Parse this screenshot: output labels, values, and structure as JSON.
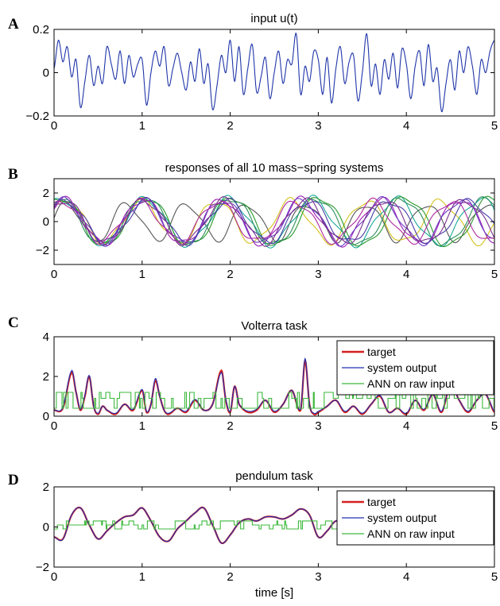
{
  "figure": {
    "xlabel": "time [s]"
  },
  "chart_data": [
    {
      "type": "line",
      "panel_letter": "A",
      "title": "input u(t)",
      "xlim": [
        0,
        5
      ],
      "ylim": [
        -0.2,
        0.2
      ],
      "xticks": [
        0,
        1,
        2,
        3,
        4,
        5
      ],
      "yticks": [
        -0.2,
        0,
        0.2
      ],
      "ytick_labels": [
        "−0.2",
        "0",
        "0.2"
      ],
      "grid": false,
      "series": [
        {
          "color": "#1f35a8",
          "x": [
            0,
            0.05,
            0.1,
            0.15,
            0.2,
            0.25,
            0.3,
            0.35,
            0.4,
            0.45,
            0.5,
            0.55,
            0.6,
            0.65,
            0.7,
            0.75,
            0.8,
            0.85,
            0.9,
            0.95,
            1,
            1.05,
            1.1,
            1.15,
            1.2,
            1.25,
            1.3,
            1.35,
            1.4,
            1.45,
            1.5,
            1.55,
            1.6,
            1.65,
            1.7,
            1.75,
            1.8,
            1.85,
            1.9,
            1.95,
            2,
            2.05,
            2.1,
            2.15,
            2.2,
            2.25,
            2.3,
            2.35,
            2.4,
            2.45,
            2.5,
            2.55,
            2.6,
            2.65,
            2.7,
            2.75,
            2.8,
            2.85,
            2.9,
            2.95,
            3,
            3.05,
            3.1,
            3.15,
            3.2,
            3.25,
            3.3,
            3.35,
            3.4,
            3.45,
            3.5,
            3.55,
            3.6,
            3.65,
            3.7,
            3.75,
            3.8,
            3.85,
            3.9,
            3.95,
            4,
            4.05,
            4.1,
            4.15,
            4.2,
            4.25,
            4.3,
            4.35,
            4.4,
            4.45,
            4.5,
            4.55,
            4.6,
            4.65,
            4.7,
            4.75,
            4.8,
            4.85,
            4.9,
            4.95,
            5
          ],
          "y": [
            0.02,
            0.15,
            0.05,
            0.12,
            -0.02,
            0.06,
            -0.16,
            -0.04,
            0.08,
            -0.06,
            0.03,
            -0.05,
            0.12,
            0.04,
            -0.03,
            0.1,
            -0.05,
            0.08,
            -0.02,
            0.04,
            0.06,
            -0.15,
            0.0,
            0.1,
            0.03,
            0.12,
            -0.06,
            0.02,
            0.09,
            0.0,
            -0.08,
            0.05,
            -0.04,
            0.11,
            -0.05,
            0.04,
            -0.17,
            -0.06,
            0.08,
            0.0,
            0.15,
            -0.04,
            0.12,
            -0.1,
            0.02,
            0.13,
            -0.09,
            -0.02,
            0.07,
            -0.12,
            0.0,
            0.1,
            -0.05,
            0.06,
            0.04,
            0.18,
            -0.1,
            0.03,
            -0.04,
            0.1,
            0.06,
            -0.1,
            0.07,
            -0.14,
            0.02,
            0.12,
            -0.05,
            0.05,
            0.08,
            -0.13,
            0.0,
            0.18,
            -0.06,
            0.04,
            -0.1,
            0.06,
            -0.03,
            0.09,
            -0.07,
            0.11,
            0.04,
            -0.12,
            0.03,
            0.1,
            -0.06,
            0.13,
            -0.04,
            0.02,
            -0.18,
            -0.05,
            0.06,
            -0.08,
            0.1,
            0.0,
            0.12,
            0.03,
            -0.1,
            0.06,
            0.0,
            0.1,
            0.15
          ]
        }
      ]
    },
    {
      "type": "line",
      "panel_letter": "B",
      "title": "responses of all 10 mass−spring systems",
      "xlim": [
        0,
        5
      ],
      "ylim": [
        -3,
        3
      ],
      "xticks": [
        0,
        1,
        2,
        3,
        4,
        5
      ],
      "yticks": [
        -2,
        0,
        2
      ],
      "ytick_labels": [
        "−2",
        "0",
        "2"
      ],
      "grid": false,
      "series": [
        {
          "color": "#555555",
          "amp": 1.25,
          "period": 0.68,
          "phase": 0.2,
          "x": [
            0,
            5
          ]
        },
        {
          "color": "#d4c21a",
          "amp": 1.45,
          "period": 0.85,
          "phase": 0.5,
          "x": [
            0,
            5
          ]
        },
        {
          "color": "#1aa89a",
          "amp": 1.6,
          "period": 0.95,
          "phase": 1.0,
          "x": [
            0,
            5
          ]
        },
        {
          "color": "#2a9a2a",
          "amp": 1.7,
          "period": 0.98,
          "phase": 1.1,
          "x": [
            0,
            5
          ]
        },
        {
          "color": "#2c8f5a",
          "amp": 1.65,
          "period": 0.97,
          "phase": 1.15,
          "x": [
            0,
            5
          ]
        },
        {
          "color": "#9b1fb5",
          "amp": 1.55,
          "period": 0.9,
          "phase": 0.8,
          "x": [
            0,
            5
          ]
        },
        {
          "color": "#6d3cc4",
          "amp": 1.5,
          "period": 0.9,
          "phase": 0.75,
          "x": [
            0,
            5
          ]
        },
        {
          "color": "#4a3ea8",
          "amp": 1.45,
          "period": 0.92,
          "phase": 0.7,
          "x": [
            0,
            5
          ]
        },
        {
          "color": "#b02aa0",
          "amp": 1.4,
          "period": 0.88,
          "phase": 0.85,
          "x": [
            0,
            5
          ]
        },
        {
          "color": "#7a2f8f",
          "amp": 1.5,
          "period": 0.91,
          "phase": 0.78,
          "x": [
            0,
            5
          ]
        }
      ]
    },
    {
      "type": "line",
      "panel_letter": "C",
      "title": "Volterra task",
      "xlim": [
        0,
        5
      ],
      "ylim": [
        0,
        4
      ],
      "xticks": [
        0,
        1,
        2,
        3,
        4,
        5
      ],
      "yticks": [
        0,
        2,
        4
      ],
      "ytick_labels": [
        "0",
        "2",
        "4"
      ],
      "grid": false,
      "legend": {
        "position": "top-right"
      },
      "series": [
        {
          "name": "target",
          "color": "#d42020",
          "x": [
            0,
            0.1,
            0.2,
            0.25,
            0.3,
            0.35,
            0.4,
            0.45,
            0.5,
            0.55,
            0.6,
            0.7,
            0.8,
            0.9,
            1.0,
            1.05,
            1.1,
            1.15,
            1.2,
            1.25,
            1.3,
            1.4,
            1.5,
            1.6,
            1.7,
            1.8,
            1.9,
            1.95,
            2.0,
            2.05,
            2.1,
            2.2,
            2.3,
            2.4,
            2.5,
            2.6,
            2.7,
            2.8,
            2.85,
            2.9,
            2.95,
            3.0,
            3.1,
            3.2,
            3.3,
            3.4,
            3.5,
            3.6,
            3.7,
            3.8,
            3.9,
            4.0,
            4.1,
            4.2,
            4.3,
            4.4,
            4.5,
            4.6,
            4.7,
            4.8,
            4.9,
            5.0
          ],
          "y": [
            0.3,
            0.4,
            2.2,
            1.2,
            0.3,
            1.0,
            2.0,
            0.5,
            0.1,
            0.5,
            0.3,
            0.1,
            0.6,
            0.3,
            1.3,
            0.2,
            0.6,
            1.8,
            1.0,
            0.3,
            0.1,
            0.4,
            0.2,
            0.8,
            0.3,
            0.6,
            2.3,
            0.8,
            0.2,
            1.5,
            0.6,
            0.2,
            0.3,
            0.8,
            0.2,
            0.6,
            1.3,
            0.3,
            2.8,
            0.6,
            0.1,
            0.2,
            0.5,
            0.8,
            0.2,
            0.5,
            0.1,
            0.6,
            1.0,
            0.2,
            0.4,
            0.1,
            0.8,
            0.3,
            1.1,
            0.2,
            1.6,
            0.8,
            0.2,
            0.8,
            1.1,
            0.2
          ]
        },
        {
          "name": "system output",
          "color": "#2030b0",
          "x": [
            0,
            0.1,
            0.2,
            0.25,
            0.3,
            0.35,
            0.4,
            0.45,
            0.5,
            0.55,
            0.6,
            0.7,
            0.8,
            0.9,
            1.0,
            1.05,
            1.1,
            1.15,
            1.2,
            1.25,
            1.3,
            1.4,
            1.5,
            1.6,
            1.7,
            1.8,
            1.9,
            1.95,
            2.0,
            2.05,
            2.1,
            2.2,
            2.3,
            2.4,
            2.5,
            2.6,
            2.7,
            2.8,
            2.85,
            2.9,
            2.95,
            3.0,
            3.1,
            3.2,
            3.3,
            3.4,
            3.5,
            3.6,
            3.7,
            3.8,
            3.9,
            4.0,
            4.1,
            4.2,
            4.3,
            4.4,
            4.5,
            4.6,
            4.7,
            4.8,
            4.9,
            5.0
          ],
          "y": [
            0.3,
            0.45,
            2.3,
            1.2,
            0.35,
            1.05,
            2.05,
            0.5,
            0.15,
            0.5,
            0.3,
            0.15,
            0.6,
            0.35,
            1.35,
            0.25,
            0.6,
            1.9,
            1.0,
            0.3,
            0.15,
            0.4,
            0.25,
            0.85,
            0.3,
            0.6,
            2.2,
            0.85,
            0.25,
            1.5,
            0.6,
            0.25,
            0.35,
            0.8,
            0.25,
            0.6,
            1.3,
            0.35,
            2.9,
            0.6,
            0.15,
            0.25,
            0.5,
            0.8,
            0.25,
            0.5,
            0.15,
            0.6,
            1.05,
            0.2,
            0.4,
            0.15,
            0.8,
            0.35,
            1.1,
            0.25,
            1.6,
            0.8,
            0.25,
            0.8,
            1.1,
            0.25
          ]
        },
        {
          "name": "ANN on raw input",
          "color": "#3cb83c",
          "levels": [
            0.4,
            0.9,
            1.2
          ],
          "x": [
            0,
            5
          ]
        }
      ]
    },
    {
      "type": "line",
      "panel_letter": "D",
      "title": "pendulum task",
      "xlim": [
        0,
        5
      ],
      "ylim": [
        -2,
        2
      ],
      "xticks": [
        0,
        1,
        2,
        3,
        4,
        5
      ],
      "yticks": [
        -2,
        0,
        2
      ],
      "ytick_labels": [
        "−2",
        "0",
        "2"
      ],
      "xlabel": "time [s]",
      "grid": false,
      "legend": {
        "position": "top-right"
      },
      "series": [
        {
          "name": "target",
          "color": "#d42020",
          "x": [
            0,
            0.1,
            0.2,
            0.3,
            0.4,
            0.5,
            0.6,
            0.7,
            0.8,
            0.9,
            1.0,
            1.1,
            1.2,
            1.3,
            1.4,
            1.5,
            1.6,
            1.7,
            1.8,
            1.9,
            2.0,
            2.1,
            2.2,
            2.3,
            2.4,
            2.5,
            2.6,
            2.7,
            2.8,
            2.9,
            3.0,
            3.1,
            3.2,
            3.3,
            3.4,
            3.5,
            3.6,
            3.7,
            3.8,
            3.9,
            4.0,
            4.1,
            4.2,
            4.3,
            4.4,
            4.5,
            4.6,
            4.7,
            4.8,
            4.9,
            5.0
          ],
          "y": [
            -0.5,
            -0.6,
            0.6,
            0.95,
            0.1,
            -0.6,
            -0.2,
            0.2,
            0.5,
            0.6,
            0.95,
            0.3,
            -0.5,
            -0.7,
            -0.1,
            0.3,
            0.7,
            0.95,
            0.1,
            -0.8,
            -0.4,
            0.2,
            0.4,
            0.3,
            0.5,
            0.5,
            0.4,
            0.6,
            0.9,
            0.6,
            -0.5,
            -0.2,
            0.3,
            0.1,
            0.0,
            -0.2,
            0.3,
            0.5,
            0.6,
            0.6,
            0.5,
            -0.3,
            -0.5,
            -0.6,
            -0.4,
            -0.3,
            0.3,
            -0.2,
            0.0,
            0.5,
            0.7
          ]
        },
        {
          "name": "system output",
          "color": "#2030b0",
          "x": [
            0,
            0.1,
            0.2,
            0.3,
            0.4,
            0.5,
            0.6,
            0.7,
            0.8,
            0.9,
            1.0,
            1.1,
            1.2,
            1.3,
            1.4,
            1.5,
            1.6,
            1.7,
            1.8,
            1.9,
            2.0,
            2.1,
            2.2,
            2.3,
            2.4,
            2.5,
            2.6,
            2.7,
            2.8,
            2.9,
            3.0,
            3.1,
            3.2,
            3.3,
            3.4,
            3.5,
            3.6,
            3.7,
            3.8,
            3.9,
            4.0,
            4.1,
            4.2,
            4.3,
            4.4,
            4.5,
            4.6,
            4.7,
            4.8,
            4.9,
            5.0
          ],
          "y": [
            -0.5,
            -0.62,
            0.62,
            0.95,
            0.1,
            -0.6,
            -0.2,
            0.2,
            0.5,
            0.6,
            0.95,
            0.3,
            -0.5,
            -0.7,
            -0.1,
            0.3,
            0.7,
            0.95,
            0.1,
            -0.8,
            -0.4,
            0.2,
            0.4,
            0.3,
            0.5,
            0.5,
            0.4,
            0.6,
            0.9,
            0.6,
            -0.5,
            -0.2,
            0.3,
            0.1,
            0.0,
            -0.2,
            0.3,
            0.5,
            0.6,
            0.6,
            0.5,
            -0.3,
            -0.5,
            -0.6,
            -0.4,
            -0.3,
            0.3,
            -0.2,
            0.0,
            0.5,
            0.7
          ]
        },
        {
          "name": "ANN on raw input",
          "color": "#3cb83c",
          "levels": [
            -0.1,
            0.1,
            0.3
          ],
          "x": [
            0,
            5
          ]
        }
      ]
    }
  ]
}
